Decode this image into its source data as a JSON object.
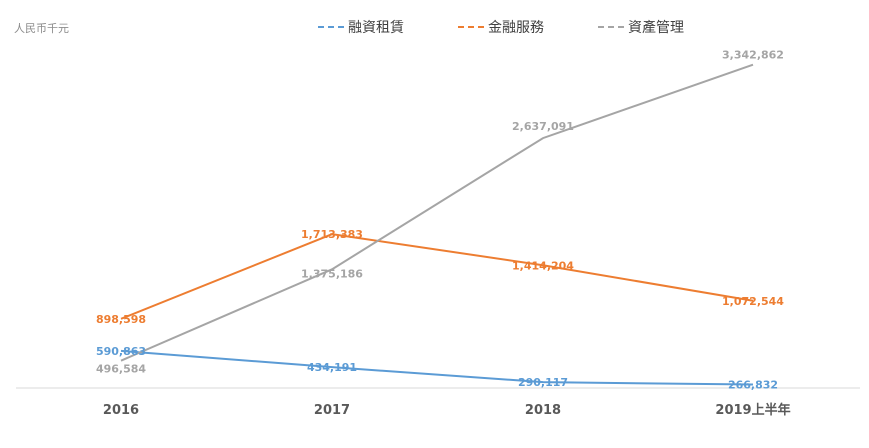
{
  "unit_label": "人民币千元",
  "chart_data": {
    "type": "line",
    "categories": [
      "2016",
      "2017",
      "2018",
      "2019上半年"
    ],
    "series": [
      {
        "name": "融資租賃",
        "color": "#5b9bd5",
        "values": [
          590863,
          434191,
          290117,
          266832
        ],
        "labels": [
          "590,863",
          "434,191",
          "290,117",
          "266,832"
        ]
      },
      {
        "name": "金融服務",
        "color": "#ed7d31",
        "values": [
          898598,
          1713383,
          1414204,
          1072544
        ],
        "labels": [
          "898,598",
          "1,713,383",
          "1,414,204",
          "1,072,544"
        ]
      },
      {
        "name": "資產管理",
        "color": "#a5a5a5",
        "values": [
          496584,
          1375186,
          2637091,
          3342862
        ],
        "labels": [
          "496,584",
          "1,375,186",
          "2,637,091",
          "3,342,862"
        ]
      }
    ],
    "legend_position": "top",
    "grid": false
  }
}
